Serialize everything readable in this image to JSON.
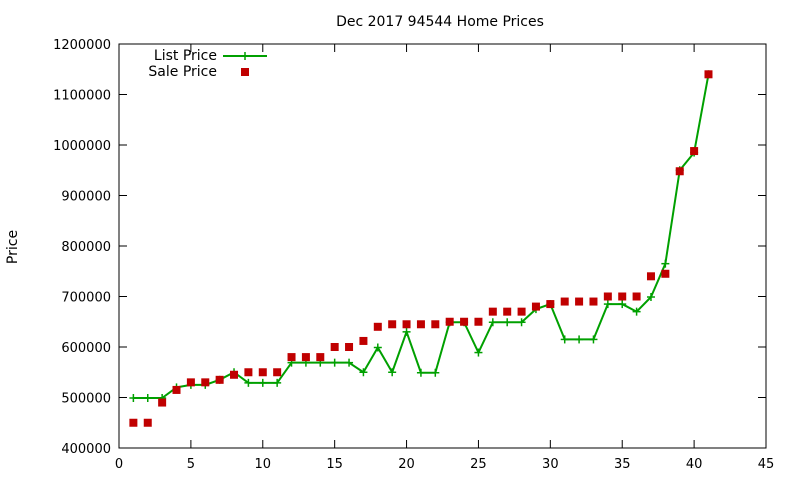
{
  "chart_data": {
    "type": "line",
    "title": "Dec 2017 94544 Home Prices",
    "xlabel": "",
    "ylabel": "Price",
    "xlim": [
      0,
      45
    ],
    "ylim": [
      400000,
      1200000
    ],
    "xticks": [
      0,
      5,
      10,
      15,
      20,
      25,
      30,
      35,
      40,
      45
    ],
    "yticks": [
      400000,
      500000,
      600000,
      700000,
      800000,
      900000,
      1000000,
      1100000,
      1200000
    ],
    "grid": false,
    "legend_position": "top-left",
    "series": [
      {
        "name": "List Price",
        "kind": "line",
        "color": "#00a000",
        "marker": "plus",
        "x": [
          1,
          2,
          3,
          4,
          5,
          6,
          7,
          8,
          9,
          10,
          11,
          12,
          13,
          14,
          15,
          16,
          17,
          18,
          19,
          20,
          21,
          22,
          23,
          24,
          25,
          26,
          27,
          28,
          29,
          30,
          31,
          32,
          33,
          34,
          35,
          36,
          37,
          38,
          39,
          40,
          41
        ],
        "y": [
          499000,
          499000,
          499000,
          520000,
          525000,
          525000,
          535000,
          550000,
          529000,
          529000,
          529000,
          569000,
          569000,
          569000,
          569000,
          569000,
          550000,
          599000,
          550000,
          630000,
          549000,
          549000,
          649000,
          649000,
          589000,
          649000,
          649000,
          649000,
          675000,
          685000,
          615000,
          615000,
          615000,
          685000,
          685000,
          670000,
          699000,
          765000,
          950000,
          985000,
          1140000
        ]
      },
      {
        "name": "Sale Price",
        "kind": "scatter",
        "color": "#c00000",
        "marker": "square",
        "x": [
          1,
          2,
          3,
          4,
          5,
          6,
          7,
          8,
          9,
          10,
          11,
          12,
          13,
          14,
          15,
          16,
          17,
          18,
          19,
          20,
          21,
          22,
          23,
          24,
          25,
          26,
          27,
          28,
          29,
          30,
          31,
          32,
          33,
          34,
          35,
          36,
          37,
          38,
          39,
          40,
          41
        ],
        "y": [
          450000,
          450000,
          490000,
          515000,
          530000,
          530000,
          535000,
          545000,
          550000,
          550000,
          550000,
          580000,
          580000,
          580000,
          600000,
          600000,
          612000,
          640000,
          645000,
          645000,
          645000,
          645000,
          650000,
          650000,
          650000,
          670000,
          670000,
          670000,
          680000,
          685000,
          690000,
          690000,
          690000,
          700000,
          700000,
          700000,
          740000,
          745000,
          948000,
          988000,
          1140000
        ]
      }
    ]
  }
}
